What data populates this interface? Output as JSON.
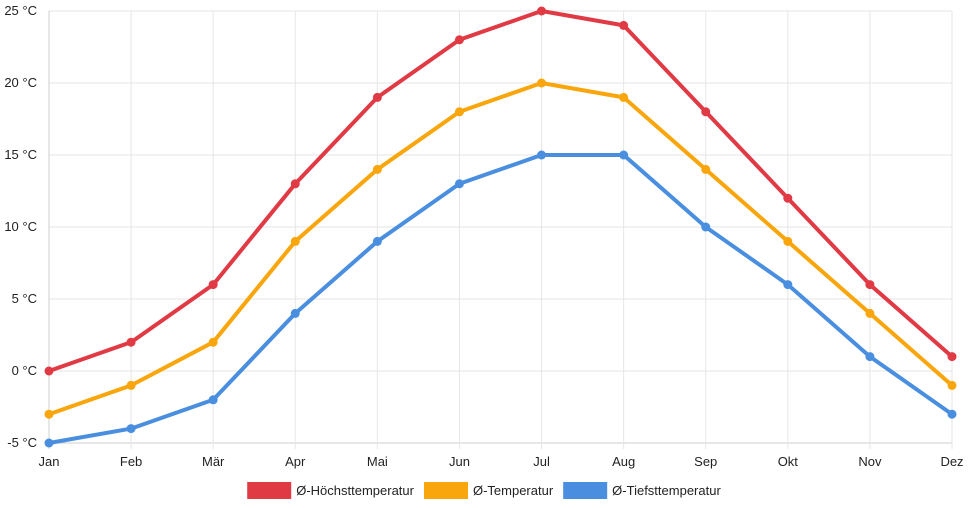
{
  "chart_data": {
    "type": "line",
    "title": "",
    "xlabel": "",
    "ylabel": "",
    "categories": [
      "Jan",
      "Feb",
      "Mär",
      "Apr",
      "Mai",
      "Jun",
      "Jul",
      "Aug",
      "Sep",
      "Okt",
      "Nov",
      "Dez"
    ],
    "ylim": [
      -5,
      25
    ],
    "y_ticks": [
      -5,
      0,
      5,
      10,
      15,
      20,
      25
    ],
    "y_tick_labels": [
      "-5 °C",
      "0 °C",
      "5 °C",
      "10 °C",
      "15 °C",
      "20 °C",
      "25 °C"
    ],
    "grid": true,
    "legend_position": "bottom",
    "series": [
      {
        "name": "Ø-Höchsttemperatur",
        "color": "#e03a45",
        "values": [
          0,
          2,
          6,
          13,
          19,
          23,
          25,
          24,
          18,
          12,
          6,
          1
        ]
      },
      {
        "name": "Ø-Temperatur",
        "color": "#f9a60c",
        "values": [
          -3,
          -1,
          2,
          9,
          14,
          18,
          20,
          19,
          14,
          9,
          4,
          -1
        ]
      },
      {
        "name": "Ø-Tiefsttemperatur",
        "color": "#4a8fdf",
        "values": [
          -5,
          -4,
          -2,
          4,
          9,
          13,
          15,
          15,
          10,
          6,
          1,
          -3
        ]
      }
    ]
  }
}
